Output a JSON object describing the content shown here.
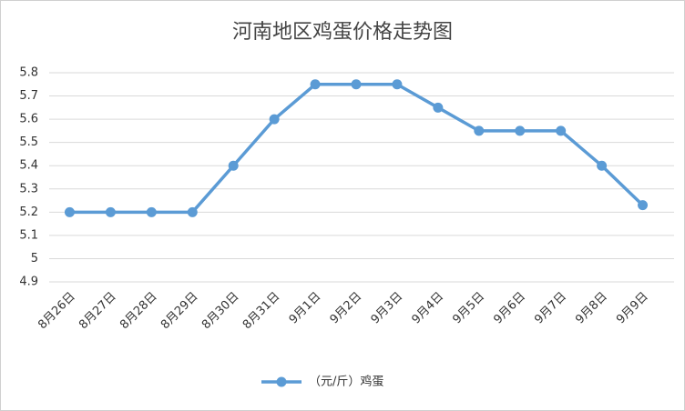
{
  "chart_data": {
    "type": "line",
    "title": "河南地区鸡蛋价格走势图",
    "categories": [
      "8月26日",
      "8月27日",
      "8月28日",
      "8月29日",
      "8月30日",
      "8月31日",
      "9月1日",
      "9月2日",
      "9月3日",
      "9月4日",
      "9月5日",
      "9月6日",
      "9月7日",
      "9月8日",
      "9月9日"
    ],
    "series": [
      {
        "name": "（元/斤）鸡蛋",
        "color": "#5b9bd5",
        "values": [
          5.2,
          5.2,
          5.2,
          5.2,
          5.4,
          5.6,
          5.75,
          5.75,
          5.75,
          5.65,
          5.55,
          5.55,
          5.55,
          5.4,
          5.23
        ]
      }
    ],
    "ylim": [
      4.9,
      5.8
    ],
    "yticks": [
      4.9,
      5,
      5.1,
      5.2,
      5.3,
      5.4,
      5.5,
      5.6,
      5.7,
      5.8
    ],
    "grid": true,
    "legend": "bottom"
  }
}
